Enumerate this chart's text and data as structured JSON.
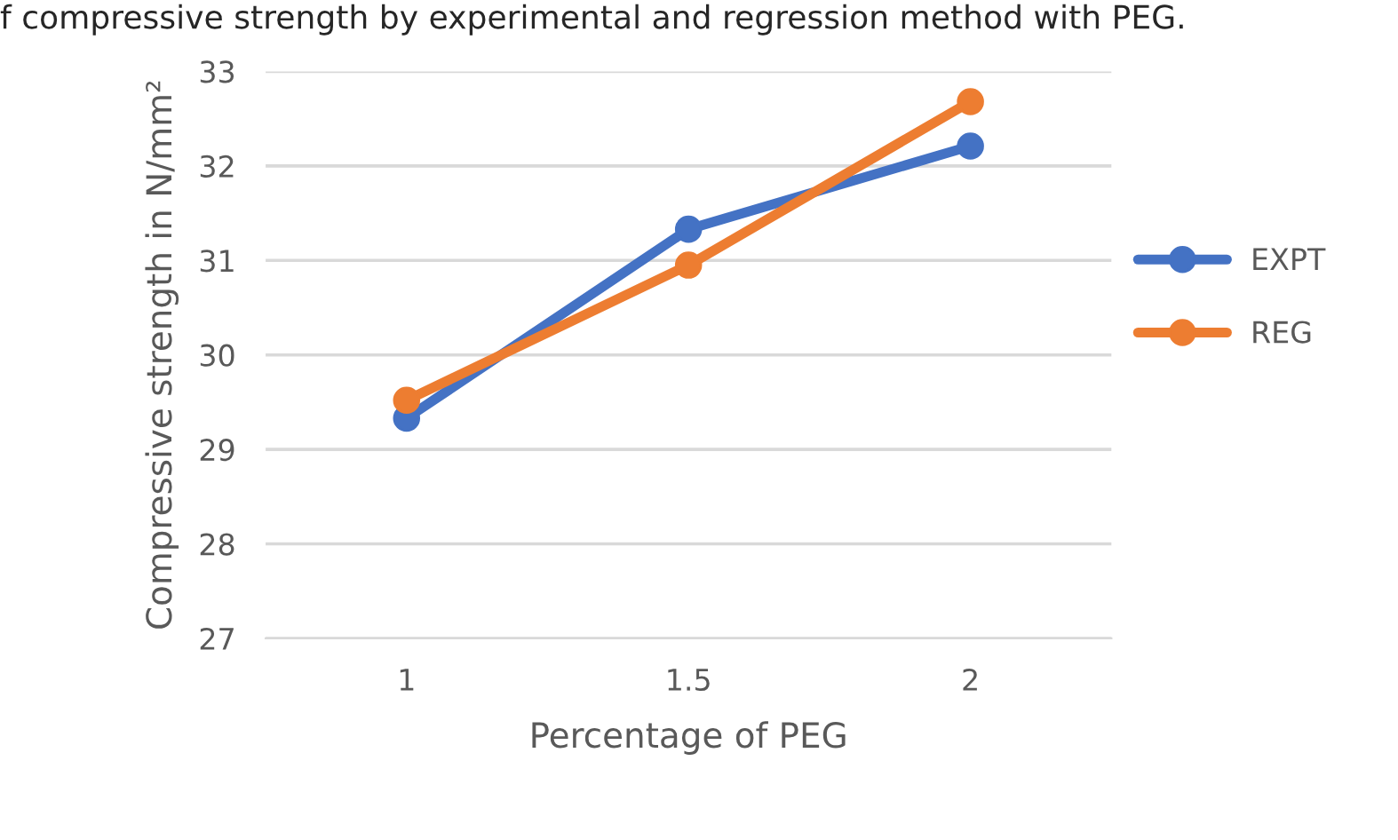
{
  "chart_data": {
    "type": "line",
    "title": "f compressive strength by experimental and regression method with PEG.",
    "xlabel": "Percentage of PEG",
    "ylabel": "Compressive strength in N/mm²",
    "categories": [
      "1",
      "1.5",
      "2"
    ],
    "series": [
      {
        "name": "EXPT",
        "color": "#4472c4",
        "values": [
          29.33,
          31.33,
          32.21
        ]
      },
      {
        "name": "REG",
        "color": "#ed7d31",
        "values": [
          29.52,
          30.95,
          32.68
        ]
      }
    ],
    "ylim": [
      27,
      33
    ],
    "yticks": [
      27,
      28,
      29,
      30,
      31,
      32,
      33
    ],
    "grid": "y",
    "legend": "right",
    "marker": "circle",
    "line_style": "solid"
  }
}
